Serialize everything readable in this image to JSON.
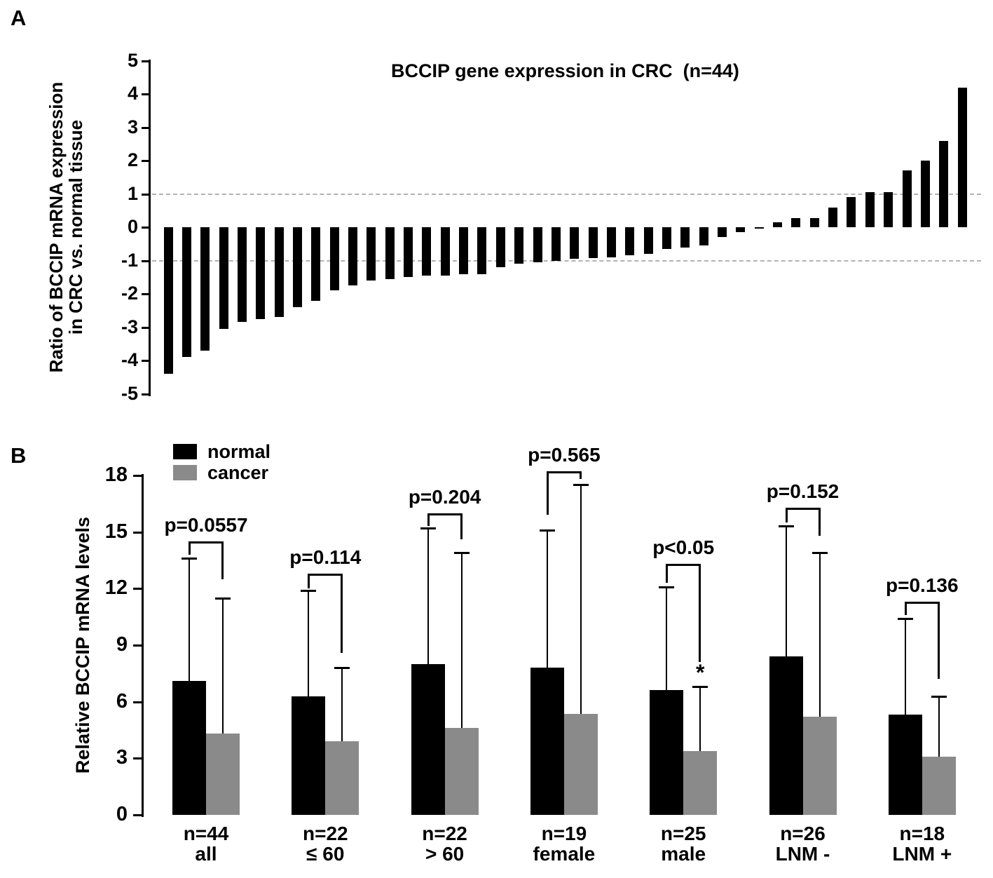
{
  "figure": {
    "panel_a_label": "A",
    "panel_b_label": "B"
  },
  "chart_data": [
    {
      "panel": "A",
      "type": "bar",
      "title": "BCCIP gene expression in CRC  (n=44)",
      "ylabel": "Ratio of BCCIP mRNA expression in CRC vs. normal tissue",
      "ylabel_line1": "Ratio of BCCIP mRNA expression",
      "ylabel_line2": "in CRC vs. normal tissue",
      "n": 44,
      "ylim": [
        -5,
        5
      ],
      "yticks": [
        5,
        4,
        3,
        2,
        1,
        0,
        -1,
        -2,
        -3,
        -4,
        -5
      ],
      "reference_lines": [
        1,
        -1
      ],
      "grid": "dashed horizontal at +1 and -1",
      "bar_color": "#000000",
      "values": [
        -4.4,
        -3.9,
        -3.7,
        -3.05,
        -2.85,
        -2.75,
        -2.7,
        -2.4,
        -2.2,
        -1.9,
        -1.75,
        -1.6,
        -1.55,
        -1.5,
        -1.45,
        -1.45,
        -1.4,
        -1.4,
        -1.2,
        -1.1,
        -1.05,
        -1.0,
        -0.95,
        -0.92,
        -0.9,
        -0.85,
        -0.8,
        -0.65,
        -0.6,
        -0.55,
        -0.3,
        -0.15,
        -0.05,
        0.15,
        0.28,
        0.28,
        0.6,
        0.9,
        1.05,
        1.05,
        1.7,
        2.0,
        2.6,
        4.2
      ]
    },
    {
      "panel": "B",
      "type": "grouped-bar",
      "ylabel": "Relative BCCIP mRNA levels",
      "ylim": [
        0,
        18
      ],
      "yticks": [
        0,
        3,
        6,
        9,
        12,
        15,
        18
      ],
      "legend_position": "top-left",
      "legend": [
        {
          "label": "normal",
          "color": "#000000"
        },
        {
          "label": "cancer",
          "color": "#8a8a8a"
        }
      ],
      "groups": [
        {
          "n_label": "n=44",
          "sub_label": "all",
          "normal": 7.1,
          "cancer": 4.3,
          "normal_err_top": 13.6,
          "cancer_err_top": 11.5,
          "p_label": "p=0.0557",
          "bracket_y": 14.5,
          "bracket_left_bottom": 13.8,
          "bracket_right_bottom": 12.5,
          "star": false
        },
        {
          "n_label": "n=22",
          "sub_label": "≤ 60",
          "normal": 6.3,
          "cancer": 3.9,
          "normal_err_top": 11.9,
          "cancer_err_top": 7.8,
          "p_label": "p=0.114",
          "bracket_y": 12.8,
          "bracket_left_bottom": 12.0,
          "bracket_right_bottom": 8.6,
          "star": false
        },
        {
          "n_label": "n=22",
          "sub_label": "> 60",
          "normal": 8.0,
          "cancer": 4.6,
          "normal_err_top": 15.2,
          "cancer_err_top": 13.9,
          "p_label": "p=0.204",
          "bracket_y": 16.0,
          "bracket_left_bottom": 15.3,
          "bracket_right_bottom": 14.6,
          "star": false
        },
        {
          "n_label": "n=19",
          "sub_label": "female",
          "normal": 7.8,
          "cancer": 5.35,
          "normal_err_top": 15.1,
          "cancer_err_top": 17.5,
          "p_label": "p=0.565",
          "bracket_y": 18.2,
          "bracket_left_bottom": 15.9,
          "bracket_right_bottom": 17.8,
          "star": false
        },
        {
          "n_label": "n=25",
          "sub_label": "male",
          "normal": 6.6,
          "cancer": 3.4,
          "normal_err_top": 12.1,
          "cancer_err_top": 6.8,
          "p_label": "p<0.05",
          "bracket_y": 13.3,
          "bracket_left_bottom": 12.3,
          "bracket_right_bottom": 8.1,
          "star": true
        },
        {
          "n_label": "n=26",
          "sub_label": "LNM -",
          "normal": 8.4,
          "cancer": 5.2,
          "normal_err_top": 15.3,
          "cancer_err_top": 13.9,
          "p_label": "p=0.152",
          "bracket_y": 16.3,
          "bracket_left_bottom": 15.5,
          "bracket_right_bottom": 14.8,
          "star": false
        },
        {
          "n_label": "n=18",
          "sub_label": "LNM +",
          "normal": 5.3,
          "cancer": 3.1,
          "normal_err_top": 10.4,
          "cancer_err_top": 6.3,
          "p_label": "p=0.136",
          "bracket_y": 11.3,
          "bracket_left_bottom": 10.6,
          "bracket_right_bottom": 7.2,
          "star": false
        }
      ],
      "star_symbol": "*"
    }
  ]
}
